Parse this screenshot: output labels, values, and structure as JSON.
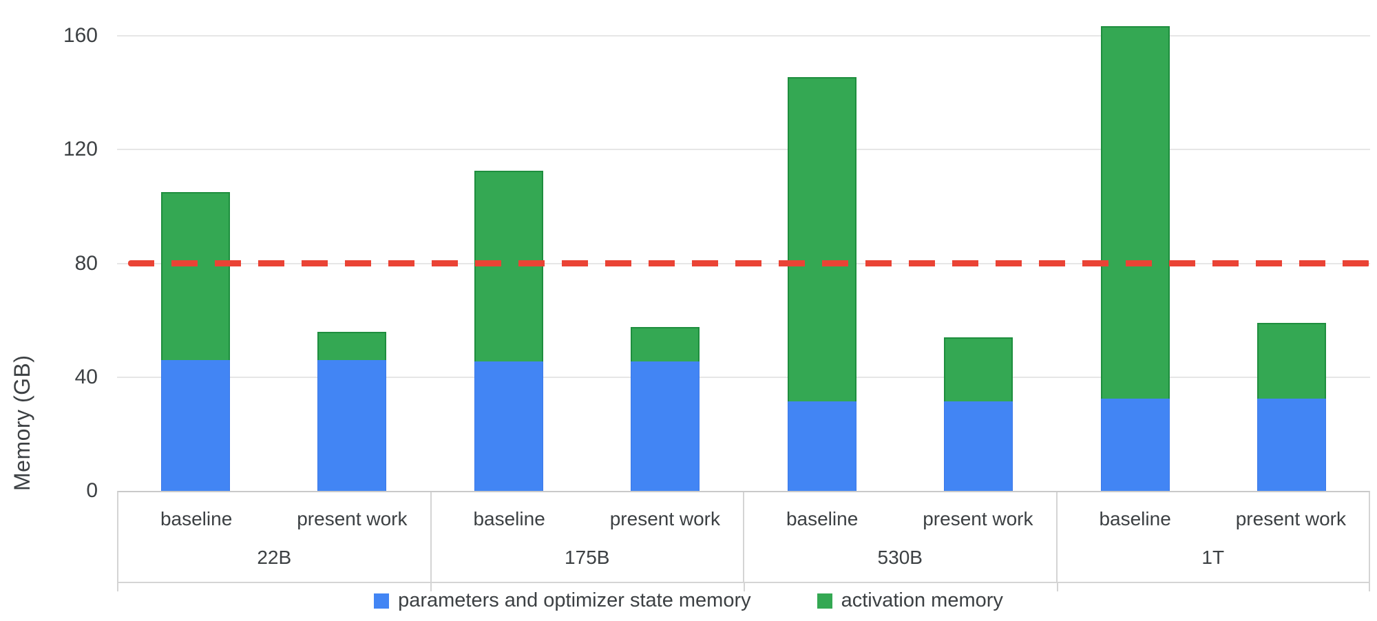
{
  "chart_data": {
    "type": "bar",
    "stacked": true,
    "title": "",
    "xlabel": "",
    "ylabel": "Memory (GB)",
    "yticks": [
      0,
      40,
      80,
      120,
      160
    ],
    "ylim": [
      0,
      172.6
    ],
    "grid": true,
    "legend_position": "bottom",
    "reference_line": {
      "value": 80,
      "color": "#ea4335",
      "style": "dashed"
    },
    "groups": [
      "22B",
      "175B",
      "530B",
      "1T"
    ],
    "conditions": [
      "baseline",
      "present work"
    ],
    "series": [
      {
        "name": "parameters and optimizer state memory",
        "color": "#4285f4",
        "values": [
          46,
          46,
          45.5,
          45.5,
          31.5,
          31.5,
          32.5,
          32.5
        ]
      },
      {
        "name": "activation memory",
        "color": "#34a853",
        "values": [
          59,
          10,
          67,
          12,
          114,
          22.5,
          131,
          26.5
        ]
      }
    ],
    "totals": [
      105,
      56,
      112.5,
      57.5,
      145.5,
      54,
      163.5,
      59
    ]
  },
  "colors": {
    "grid": "#e6e6e6",
    "axis_frame": "#d4d4d4",
    "text": "#3c4043",
    "reference": "#ea4335",
    "params_fill": "#4285f4",
    "params_border": "#3b78e7",
    "activation_fill": "#34a853",
    "activation_border": "#1e8e3e"
  }
}
